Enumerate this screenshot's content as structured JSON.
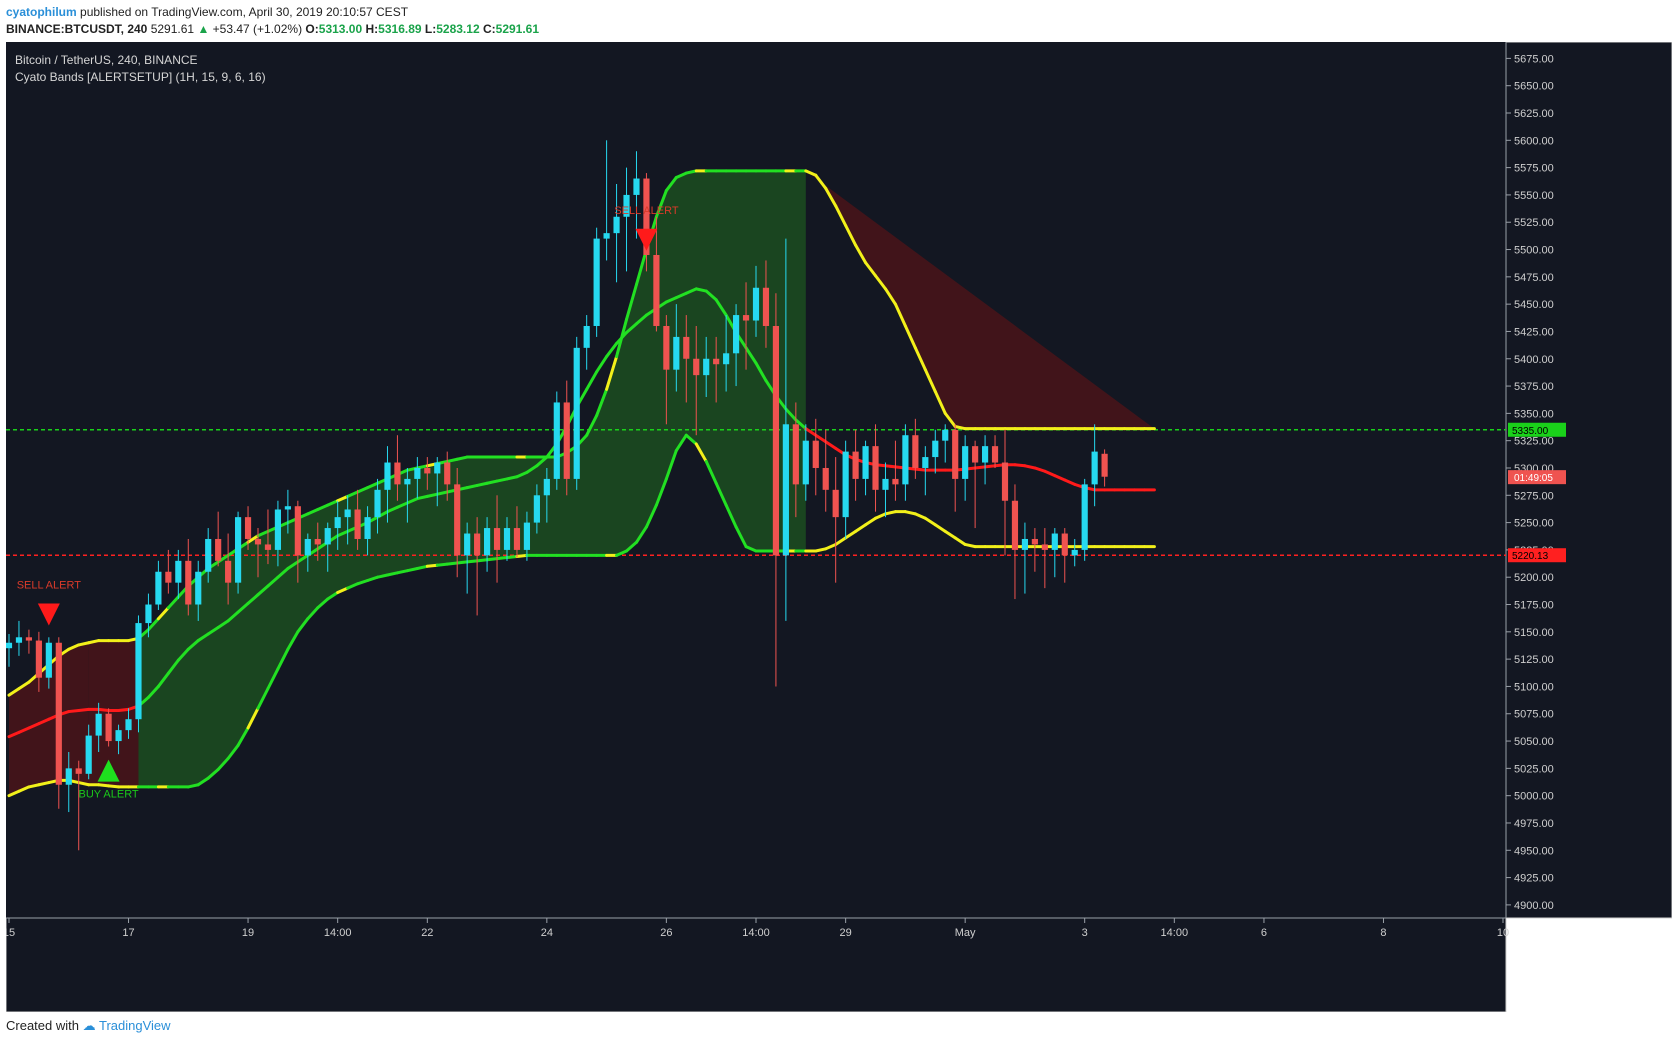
{
  "header": {
    "user": "cyatophilum",
    "published": "published on TradingView.com, April 30, 2019 20:10:57 CEST",
    "symbol": "BINANCE:BTCUSDT, 240",
    "last": "5291.61",
    "change": "+53.47 (+1.02%)",
    "o_label": "O:",
    "o": "5313.00",
    "h_label": "H:",
    "h": "5316.89",
    "l_label": "L:",
    "l": "5283.12",
    "c_label": "C:",
    "c": "5291.61"
  },
  "legend": {
    "line1": "Bitcoin / TetherUS, 240, BINANCE",
    "line2": "Cyato Bands [ALERTSETUP] (1H, 15, 9, 6, 16)"
  },
  "footer": {
    "created": "Created with",
    "brand": "TradingView"
  },
  "colors": {
    "background": "#131722",
    "up": "#26d9f0",
    "down": "#ef5350",
    "band_green": "#1c4d20",
    "band_red": "#4a1419",
    "line_green": "#22e022",
    "line_yellow": "#f2f01a",
    "line_red": "#ff1a1a",
    "line_white": "#ffffff",
    "level_green": "#1ad11a",
    "level_red": "#ff2020",
    "axis_text": "#cfcfcf"
  },
  "chart_data": {
    "type": "candlestick",
    "title": "Bitcoin / TetherUS, 240, BINANCE",
    "indicator": "Cyato Bands [ALERTSETUP] (1H, 15, 9, 6, 16)",
    "y_ticks": [
      "5675.00",
      "5650.00",
      "5625.00",
      "5600.00",
      "5575.00",
      "5550.00",
      "5525.00",
      "5500.00",
      "5475.00",
      "5450.00",
      "5425.00",
      "5400.00",
      "5375.00",
      "5350.00",
      "5325.00",
      "5300.00",
      "5275.00",
      "5250.00",
      "5225.00",
      "5200.00",
      "5175.00",
      "5150.00",
      "5125.00",
      "5100.00",
      "5075.00",
      "5050.00",
      "5025.00",
      "5000.00",
      "4975.00",
      "4950.00",
      "4925.00",
      "4900.00"
    ],
    "ylim": [
      4888,
      5690
    ],
    "x_ticks": [
      {
        "label": "15",
        "i": 0
      },
      {
        "label": "17",
        "i": 12
      },
      {
        "label": "19",
        "i": 24
      },
      {
        "label": "14:00",
        "i": 33
      },
      {
        "label": "22",
        "i": 42
      },
      {
        "label": "24",
        "i": 54
      },
      {
        "label": "26",
        "i": 66
      },
      {
        "label": "14:00",
        "i": 75
      },
      {
        "label": "29",
        "i": 84
      },
      {
        "label": "May",
        "i": 96
      },
      {
        "label": "3",
        "i": 108
      },
      {
        "label": "14:00",
        "i": 117
      },
      {
        "label": "6",
        "i": 126
      },
      {
        "label": "8",
        "i": 138
      },
      {
        "label": "10",
        "i": 150
      }
    ],
    "x_bar_span": [
      0,
      150
    ],
    "price_levels": [
      {
        "value": 5335.0,
        "label": "5335.00",
        "color": "level_green"
      },
      {
        "value": 5220.13,
        "label": "5220.13",
        "color": "level_red"
      }
    ],
    "current_label": {
      "value": 5291.61,
      "label": "01:49:05"
    },
    "alerts": [
      {
        "type": "sell",
        "text": "SELL ALERT",
        "i": 4,
        "price": 5165
      },
      {
        "type": "buy",
        "text": "BUY ALERT",
        "i": 10,
        "price": 5022
      },
      {
        "type": "sell",
        "text": "SELL ALERT",
        "i": 64,
        "price": 5508
      }
    ],
    "candles": [
      [
        5135,
        5148,
        5118,
        5140
      ],
      [
        5140,
        5160,
        5128,
        5145
      ],
      [
        5145,
        5152,
        5130,
        5142
      ],
      [
        5142,
        5150,
        5095,
        5108
      ],
      [
        5108,
        5145,
        5098,
        5140
      ],
      [
        5140,
        5145,
        4988,
        5010
      ],
      [
        5010,
        5040,
        4985,
        5025
      ],
      [
        5025,
        5032,
        4950,
        5020
      ],
      [
        5020,
        5065,
        5015,
        5055
      ],
      [
        5055,
        5085,
        5040,
        5075
      ],
      [
        5075,
        5080,
        5045,
        5050
      ],
      [
        5050,
        5065,
        5038,
        5060
      ],
      [
        5060,
        5080,
        5052,
        5070
      ],
      [
        5070,
        5165,
        5058,
        5158
      ],
      [
        5158,
        5185,
        5145,
        5175
      ],
      [
        5175,
        5215,
        5170,
        5205
      ],
      [
        5205,
        5225,
        5185,
        5195
      ],
      [
        5195,
        5225,
        5180,
        5215
      ],
      [
        5215,
        5235,
        5165,
        5175
      ],
      [
        5175,
        5215,
        5160,
        5205
      ],
      [
        5205,
        5245,
        5195,
        5235
      ],
      [
        5235,
        5260,
        5210,
        5215
      ],
      [
        5215,
        5240,
        5175,
        5195
      ],
      [
        5195,
        5260,
        5185,
        5255
      ],
      [
        5255,
        5265,
        5225,
        5235
      ],
      [
        5235,
        5245,
        5200,
        5230
      ],
      [
        5230,
        5262,
        5212,
        5225
      ],
      [
        5225,
        5270,
        5210,
        5262
      ],
      [
        5262,
        5280,
        5240,
        5265
      ],
      [
        5265,
        5270,
        5195,
        5220
      ],
      [
        5220,
        5240,
        5205,
        5235
      ],
      [
        5235,
        5250,
        5215,
        5230
      ],
      [
        5230,
        5250,
        5205,
        5245
      ],
      [
        5245,
        5270,
        5225,
        5255
      ],
      [
        5255,
        5275,
        5230,
        5262
      ],
      [
        5262,
        5280,
        5225,
        5235
      ],
      [
        5235,
        5265,
        5220,
        5255
      ],
      [
        5255,
        5290,
        5240,
        5280
      ],
      [
        5280,
        5320,
        5250,
        5305
      ],
      [
        5305,
        5330,
        5270,
        5285
      ],
      [
        5285,
        5300,
        5250,
        5290
      ],
      [
        5290,
        5310,
        5272,
        5300
      ],
      [
        5300,
        5310,
        5280,
        5295
      ],
      [
        5295,
        5310,
        5265,
        5305
      ],
      [
        5305,
        5315,
        5270,
        5285
      ],
      [
        5285,
        5300,
        5200,
        5220
      ],
      [
        5220,
        5250,
        5185,
        5240
      ],
      [
        5240,
        5255,
        5165,
        5220
      ],
      [
        5220,
        5255,
        5205,
        5245
      ],
      [
        5245,
        5275,
        5195,
        5225
      ],
      [
        5225,
        5255,
        5215,
        5245
      ],
      [
        5245,
        5265,
        5218,
        5225
      ],
      [
        5225,
        5260,
        5215,
        5250
      ],
      [
        5250,
        5285,
        5240,
        5275
      ],
      [
        5275,
        5300,
        5250,
        5290
      ],
      [
        5290,
        5370,
        5280,
        5360
      ],
      [
        5360,
        5380,
        5275,
        5290
      ],
      [
        5290,
        5420,
        5280,
        5410
      ],
      [
        5410,
        5440,
        5390,
        5430
      ],
      [
        5430,
        5520,
        5420,
        5510
      ],
      [
        5510,
        5600,
        5490,
        5515
      ],
      [
        5515,
        5560,
        5470,
        5530
      ],
      [
        5530,
        5575,
        5480,
        5550
      ],
      [
        5550,
        5590,
        5510,
        5565
      ],
      [
        5565,
        5570,
        5480,
        5495
      ],
      [
        5495,
        5530,
        5425,
        5430
      ],
      [
        5430,
        5440,
        5340,
        5390
      ],
      [
        5390,
        5450,
        5370,
        5420
      ],
      [
        5420,
        5440,
        5360,
        5400
      ],
      [
        5400,
        5430,
        5330,
        5385
      ],
      [
        5385,
        5420,
        5365,
        5400
      ],
      [
        5400,
        5420,
        5360,
        5395
      ],
      [
        5395,
        5440,
        5370,
        5405
      ],
      [
        5405,
        5450,
        5375,
        5440
      ],
      [
        5440,
        5470,
        5390,
        5435
      ],
      [
        5435,
        5485,
        5420,
        5465
      ],
      [
        5465,
        5490,
        5410,
        5430
      ],
      [
        5430,
        5460,
        5100,
        5220
      ],
      [
        5220,
        5510,
        5160,
        5340
      ],
      [
        5340,
        5360,
        5255,
        5285
      ],
      [
        5285,
        5340,
        5270,
        5325
      ],
      [
        5325,
        5345,
        5275,
        5300
      ],
      [
        5300,
        5335,
        5260,
        5280
      ],
      [
        5280,
        5310,
        5195,
        5255
      ],
      [
        5255,
        5325,
        5235,
        5315
      ],
      [
        5315,
        5335,
        5270,
        5290
      ],
      [
        5290,
        5325,
        5275,
        5320
      ],
      [
        5320,
        5340,
        5260,
        5280
      ],
      [
        5280,
        5305,
        5255,
        5290
      ],
      [
        5290,
        5325,
        5270,
        5285
      ],
      [
        5285,
        5340,
        5270,
        5330
      ],
      [
        5330,
        5345,
        5290,
        5300
      ],
      [
        5300,
        5320,
        5275,
        5310
      ],
      [
        5310,
        5335,
        5295,
        5325
      ],
      [
        5325,
        5340,
        5305,
        5335
      ],
      [
        5335,
        5340,
        5260,
        5290
      ],
      [
        5290,
        5330,
        5270,
        5320
      ],
      [
        5320,
        5325,
        5245,
        5305
      ],
      [
        5305,
        5330,
        5285,
        5320
      ],
      [
        5320,
        5330,
        5300,
        5305
      ],
      [
        5305,
        5335,
        5220,
        5270
      ],
      [
        5270,
        5285,
        5180,
        5225
      ],
      [
        5225,
        5250,
        5185,
        5235
      ],
      [
        5235,
        5245,
        5205,
        5230
      ],
      [
        5230,
        5245,
        5190,
        5225
      ],
      [
        5225,
        5245,
        5200,
        5240
      ],
      [
        5240,
        5245,
        5195,
        5220
      ],
      [
        5220,
        5235,
        5210,
        5225
      ],
      [
        5225,
        5290,
        5215,
        5285
      ],
      [
        5285,
        5340,
        5265,
        5315
      ],
      [
        5313,
        5317,
        5283,
        5292
      ]
    ],
    "band_segments": [
      {
        "from": 0,
        "to": 8,
        "fill": "band_red"
      },
      {
        "from": 8,
        "to": 13,
        "fill": "band_red"
      },
      {
        "from": 13,
        "to": 80,
        "fill": "band_green"
      },
      {
        "from": 80,
        "to": 116,
        "fill": "band_red"
      }
    ],
    "bands": {
      "upper": [
        5092,
        5098,
        5104,
        5112,
        5120,
        5128,
        5134,
        5138,
        5140,
        5142,
        5142,
        5142,
        5142,
        5144,
        5152,
        5162,
        5172,
        5182,
        5192,
        5200,
        5208,
        5214,
        5220,
        5226,
        5232,
        5238,
        5242,
        5246,
        5250,
        5254,
        5258,
        5262,
        5266,
        5270,
        5274,
        5278,
        5282,
        5286,
        5290,
        5294,
        5298,
        5300,
        5302,
        5304,
        5306,
        5308,
        5310,
        5310,
        5310,
        5310,
        5310,
        5310,
        5310,
        5310,
        5310,
        5310,
        5314,
        5320,
        5330,
        5348,
        5372,
        5402,
        5436,
        5468,
        5500,
        5530,
        5554,
        5566,
        5570,
        5572,
        5572,
        5572,
        5572,
        5572,
        5572,
        5572,
        5572,
        5572,
        5572,
        5572,
        5572,
        5568,
        5556,
        5540,
        5522,
        5504,
        5488,
        5476,
        5464,
        5450,
        5430,
        5410,
        5390,
        5370,
        5350,
        5338,
        5336,
        5336,
        5336,
        5336,
        5336,
        5336,
        5336,
        5336,
        5336,
        5336,
        5336,
        5336,
        5336,
        5336,
        5336,
        5336,
        5336,
        5336,
        5336,
        5336
      ],
      "basis": [
        5054,
        5058,
        5062,
        5066,
        5070,
        5074,
        5077,
        5078,
        5079,
        5079,
        5078,
        5078,
        5079,
        5082,
        5090,
        5100,
        5112,
        5124,
        5134,
        5142,
        5148,
        5154,
        5160,
        5168,
        5176,
        5184,
        5192,
        5200,
        5208,
        5214,
        5220,
        5226,
        5232,
        5238,
        5242,
        5246,
        5250,
        5255,
        5260,
        5264,
        5268,
        5272,
        5274,
        5276,
        5278,
        5280,
        5282,
        5284,
        5286,
        5288,
        5290,
        5292,
        5296,
        5302,
        5310,
        5322,
        5338,
        5356,
        5372,
        5388,
        5402,
        5414,
        5424,
        5432,
        5440,
        5446,
        5452,
        5456,
        5460,
        5464,
        5462,
        5454,
        5440,
        5424,
        5410,
        5396,
        5380,
        5366,
        5354,
        5344,
        5336,
        5330,
        5324,
        5318,
        5312,
        5308,
        5305,
        5303,
        5302,
        5301,
        5300,
        5299,
        5298,
        5298,
        5298,
        5298,
        5299,
        5300,
        5301,
        5302,
        5303,
        5303,
        5302,
        5300,
        5297,
        5293,
        5289,
        5285,
        5282,
        5280,
        5280,
        5280,
        5280,
        5280,
        5280,
        5280
      ],
      "lower": [
        5000,
        5004,
        5008,
        5010,
        5012,
        5014,
        5014,
        5012,
        5010,
        5010,
        5009,
        5008,
        5008,
        5008,
        5008,
        5008,
        5008,
        5008,
        5008,
        5010,
        5016,
        5024,
        5034,
        5046,
        5062,
        5080,
        5098,
        5116,
        5134,
        5150,
        5162,
        5172,
        5180,
        5186,
        5190,
        5194,
        5197,
        5200,
        5202,
        5204,
        5206,
        5208,
        5210,
        5211,
        5212,
        5213,
        5214,
        5215,
        5216,
        5217,
        5218,
        5219,
        5220,
        5220,
        5220,
        5220,
        5220,
        5220,
        5220,
        5220,
        5220,
        5220,
        5224,
        5232,
        5246,
        5266,
        5290,
        5316,
        5330,
        5322,
        5306,
        5286,
        5266,
        5246,
        5228,
        5224,
        5224,
        5224,
        5224,
        5224,
        5224,
        5224,
        5226,
        5230,
        5236,
        5242,
        5248,
        5254,
        5258,
        5260,
        5260,
        5258,
        5254,
        5248,
        5242,
        5236,
        5230,
        5228,
        5228,
        5228,
        5228,
        5228,
        5228,
        5228,
        5228,
        5228,
        5228,
        5228,
        5228,
        5228,
        5228,
        5228,
        5228,
        5228,
        5228,
        5228
      ]
    }
  }
}
